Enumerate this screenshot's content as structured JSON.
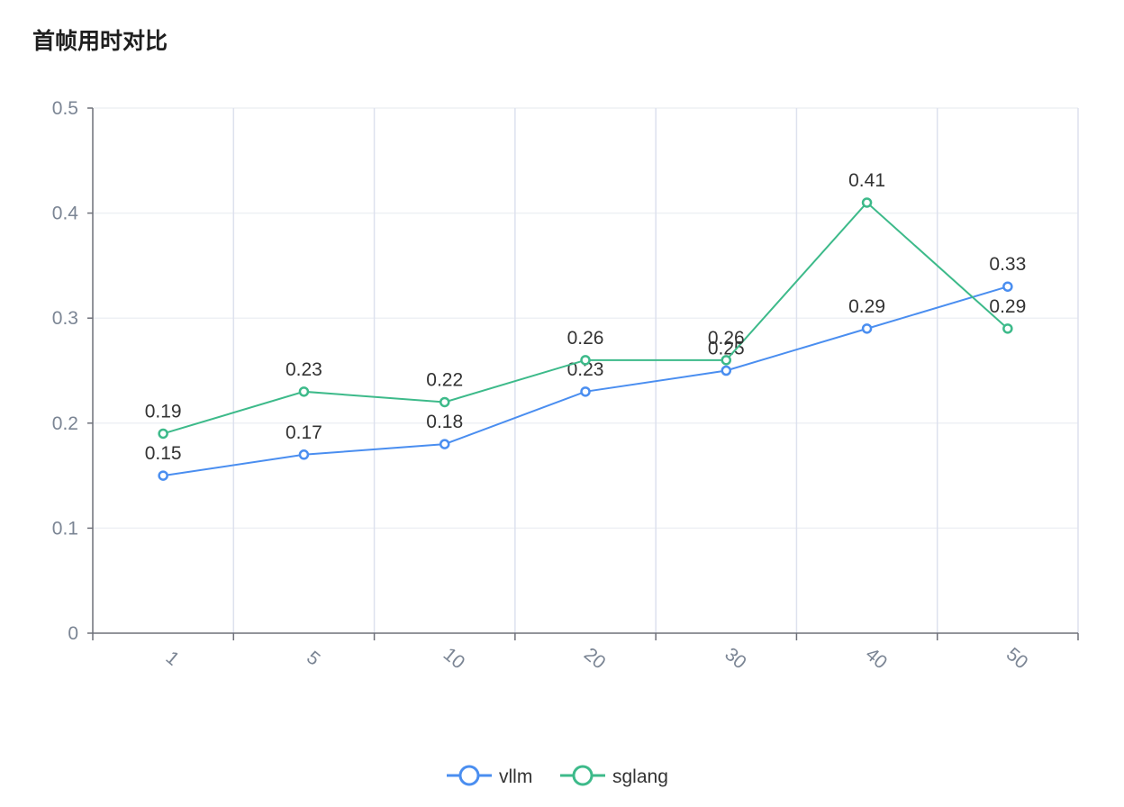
{
  "chart_data": {
    "type": "line",
    "title": "首帧用时对比",
    "categories": [
      "1",
      "5",
      "10",
      "20",
      "30",
      "40",
      "50"
    ],
    "series": [
      {
        "name": "vllm",
        "color": "#4a8ef0",
        "values": [
          0.15,
          0.17,
          0.18,
          0.23,
          0.25,
          0.29,
          0.33
        ]
      },
      {
        "name": "sglang",
        "color": "#3dba8a",
        "values": [
          0.19,
          0.23,
          0.22,
          0.26,
          0.26,
          0.41,
          0.29
        ]
      }
    ],
    "yticks": [
      "0",
      "0.1",
      "0.2",
      "0.3",
      "0.4",
      "0.5"
    ],
    "ylim": [
      0,
      0.5
    ],
    "grid": true,
    "legend": "bottom-center"
  }
}
